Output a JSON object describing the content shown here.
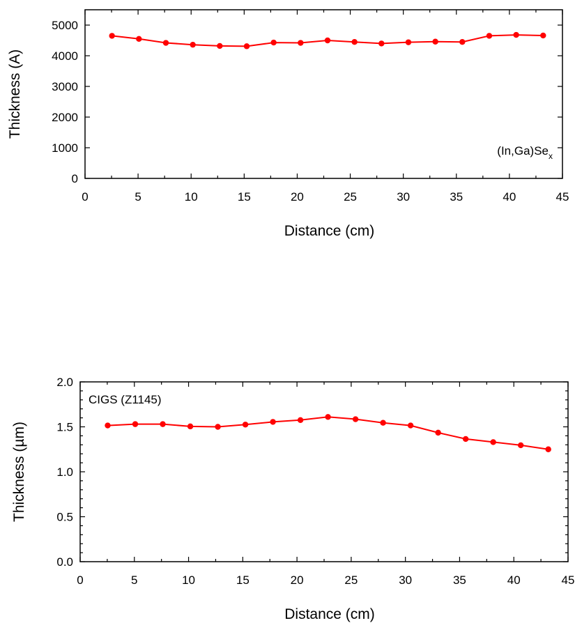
{
  "chart_data": [
    {
      "type": "line",
      "title": "",
      "xlabel": "Distance (cm)",
      "ylabel": "Thickness (A)",
      "xlim": [
        0,
        45
      ],
      "ylim": [
        0,
        5500
      ],
      "xticks": [
        0,
        5,
        10,
        15,
        20,
        25,
        30,
        35,
        40,
        45
      ],
      "yticks": [
        0,
        1000,
        2000,
        3000,
        4000,
        5000
      ],
      "grid": false,
      "annotation": {
        "main": "(In,Ga)Se",
        "sub": "x",
        "position": "bottom-right"
      },
      "line_color": "#ff0000",
      "series": [
        {
          "x": [
            2.54,
            5.08,
            7.62,
            10.16,
            12.7,
            15.24,
            17.78,
            20.32,
            22.86,
            25.4,
            27.94,
            30.48,
            33.02,
            35.56,
            38.1,
            40.64,
            43.18
          ],
          "y": [
            4650,
            4550,
            4420,
            4360,
            4320,
            4310,
            4430,
            4420,
            4500,
            4450,
            4400,
            4440,
            4460,
            4450,
            4650,
            4680,
            4660
          ]
        }
      ]
    },
    {
      "type": "line",
      "title": "",
      "xlabel": "Distance (cm)",
      "ylabel": "Thickness (µm)",
      "xlim": [
        0,
        45
      ],
      "ylim": [
        0,
        2.0
      ],
      "xticks": [
        0,
        5,
        10,
        15,
        20,
        25,
        30,
        35,
        40,
        45
      ],
      "yticks": [
        0.0,
        0.5,
        1.0,
        1.5,
        2.0
      ],
      "ytick_labels": [
        "0.0",
        "0.5",
        "1.0",
        "1.5",
        "2.0"
      ],
      "grid": false,
      "annotation": {
        "main": "CIGS (Z1145)",
        "sub": "",
        "position": "top-left"
      },
      "line_color": "#ff0000",
      "series": [
        {
          "x": [
            2.54,
            5.08,
            7.62,
            10.16,
            12.7,
            15.24,
            17.78,
            20.32,
            22.86,
            25.4,
            27.94,
            30.48,
            33.02,
            35.56,
            38.1,
            40.64,
            43.18
          ],
          "y": [
            1.515,
            1.53,
            1.53,
            1.505,
            1.5,
            1.525,
            1.555,
            1.575,
            1.61,
            1.585,
            1.545,
            1.515,
            1.435,
            1.365,
            1.33,
            1.295,
            1.25
          ]
        }
      ]
    }
  ]
}
